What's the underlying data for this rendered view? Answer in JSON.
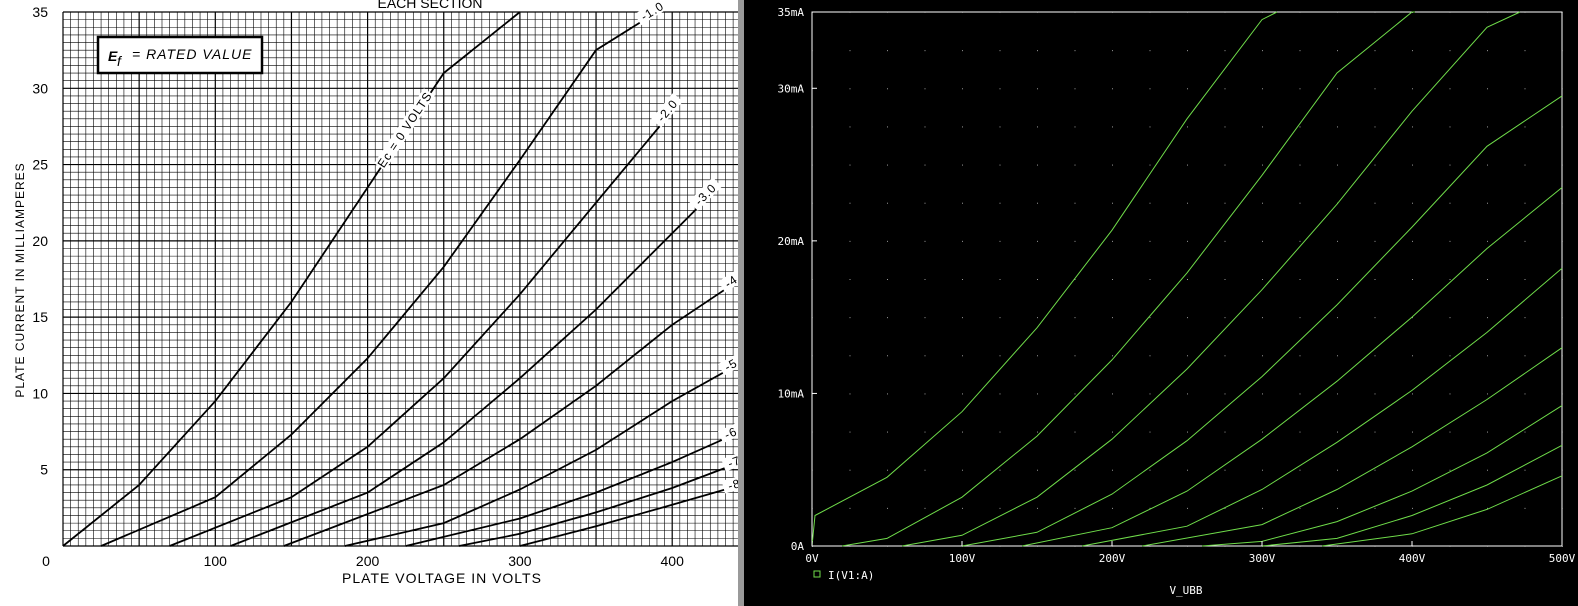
{
  "left_chart": {
    "title": "EACH SECTION",
    "annotation": "= RATED VALUE",
    "annotation_symbol": "E",
    "annotation_sub": "f",
    "xlabel": "PLATE VOLTAGE IN VOLTS",
    "ylabel": "PLATE CURRENT IN MILLIAMPERES",
    "y_ticks": [
      "35",
      "30",
      "25",
      "20",
      "15",
      "10",
      "5"
    ],
    "x_ticks": [
      "0",
      "100",
      "200",
      "300",
      "400"
    ],
    "curve_labels": [
      "Ec = 0 VOLTS",
      "-1.0",
      "-2.0",
      "-3.0",
      "-4.0",
      "-5.0",
      "-6.0",
      "-7.",
      "-8."
    ]
  },
  "right_chart": {
    "y_ticks": [
      "35mA",
      "30mA",
      "20mA",
      "10mA",
      "0A"
    ],
    "x_ticks": [
      "0V",
      "100V",
      "200V",
      "300V",
      "400V",
      "500V"
    ],
    "xlabel": "V_UBB",
    "legend": "I(V1:A)",
    "trace_color": "#6fdc4a",
    "background": "#000000"
  },
  "chart_data": [
    {
      "type": "line",
      "xlabel": "PLATE VOLTAGE IN VOLTS",
      "ylabel": "PLATE CURRENT IN MILLIAMPERES",
      "xlim": [
        0,
        450
      ],
      "ylim": [
        0,
        35
      ],
      "grid": true,
      "series": [
        {
          "name": "Ec = 0 VOLTS",
          "x": [
            0,
            50,
            100,
            150,
            200,
            250,
            300
          ],
          "y": [
            0,
            4.0,
            9.5,
            16.0,
            23.5,
            31.0,
            35
          ]
        },
        {
          "name": "-1.0",
          "x": [
            25,
            100,
            150,
            200,
            250,
            300,
            350,
            390
          ],
          "y": [
            0,
            3.2,
            7.3,
            12.3,
            18.3,
            25.3,
            32.5,
            35
          ]
        },
        {
          "name": "-2.0",
          "x": [
            70,
            150,
            200,
            250,
            300,
            350,
            400
          ],
          "y": [
            0,
            3.2,
            6.5,
            11.0,
            16.5,
            22.5,
            28.5
          ]
        },
        {
          "name": "-3.0",
          "x": [
            110,
            200,
            250,
            300,
            350,
            400,
            425
          ],
          "y": [
            0,
            3.5,
            6.8,
            11.0,
            15.5,
            20.5,
            23.0
          ]
        },
        {
          "name": "-4.0",
          "x": [
            145,
            250,
            300,
            350,
            400,
            445
          ],
          "y": [
            0,
            4.0,
            7.0,
            10.5,
            14.5,
            17.5
          ]
        },
        {
          "name": "-5.0",
          "x": [
            185,
            250,
            300,
            350,
            400,
            445
          ],
          "y": [
            0,
            1.5,
            3.7,
            6.3,
            9.5,
            12.0
          ]
        },
        {
          "name": "-6.0",
          "x": [
            225,
            300,
            350,
            400,
            445
          ],
          "y": [
            0,
            1.8,
            3.5,
            5.5,
            7.5
          ]
        },
        {
          "name": "-7.",
          "x": [
            260,
            300,
            350,
            400,
            445
          ],
          "y": [
            0,
            0.8,
            2.2,
            3.8,
            5.5
          ]
        },
        {
          "name": "-8.",
          "x": [
            300,
            350,
            400,
            445
          ],
          "y": [
            0,
            1.3,
            2.7,
            4.0
          ]
        }
      ]
    },
    {
      "type": "line",
      "xlabel": "V_UBB",
      "ylabel": "",
      "xlim": [
        0,
        500
      ],
      "ylim": [
        0,
        35
      ],
      "grid": true,
      "legend": "I(V1:A)",
      "series": [
        {
          "x": [
            0,
            2,
            50,
            100,
            150,
            200,
            250,
            300,
            310
          ],
          "y": [
            0,
            2.0,
            4.5,
            8.8,
            14.3,
            20.7,
            28.0,
            34.5,
            35
          ]
        },
        {
          "x": [
            20,
            50,
            100,
            150,
            200,
            250,
            300,
            350,
            400,
            402
          ],
          "y": [
            0,
            0.5,
            3.2,
            7.2,
            12.2,
            17.9,
            24.3,
            31.0,
            35,
            35
          ]
        },
        {
          "x": [
            60,
            100,
            150,
            200,
            250,
            300,
            350,
            400,
            450,
            472
          ],
          "y": [
            0,
            0.7,
            3.2,
            7.0,
            11.6,
            16.8,
            22.4,
            28.5,
            34.0,
            35
          ]
        },
        {
          "x": [
            100,
            150,
            200,
            250,
            300,
            350,
            400,
            450,
            500
          ],
          "y": [
            0,
            0.9,
            3.4,
            6.9,
            11.1,
            15.8,
            20.9,
            26.2,
            29.5
          ]
        },
        {
          "x": [
            140,
            200,
            250,
            300,
            350,
            400,
            450,
            500
          ],
          "y": [
            0,
            1.2,
            3.6,
            7.0,
            10.8,
            15.0,
            19.5,
            23.5
          ]
        },
        {
          "x": [
            180,
            250,
            300,
            350,
            400,
            450,
            500
          ],
          "y": [
            0,
            1.3,
            3.7,
            6.8,
            10.2,
            14.0,
            18.2
          ]
        },
        {
          "x": [
            220,
            300,
            350,
            400,
            450,
            500
          ],
          "y": [
            0,
            1.4,
            3.7,
            6.5,
            9.6,
            13.0
          ]
        },
        {
          "x": [
            260,
            300,
            350,
            400,
            450,
            500
          ],
          "y": [
            0,
            0.3,
            1.6,
            3.6,
            6.1,
            9.2
          ]
        },
        {
          "x": [
            300,
            350,
            400,
            450,
            500
          ],
          "y": [
            0,
            0.5,
            2.0,
            4.0,
            6.6
          ]
        },
        {
          "x": [
            340,
            400,
            450,
            500
          ],
          "y": [
            0,
            0.8,
            2.4,
            4.6
          ]
        }
      ]
    }
  ]
}
